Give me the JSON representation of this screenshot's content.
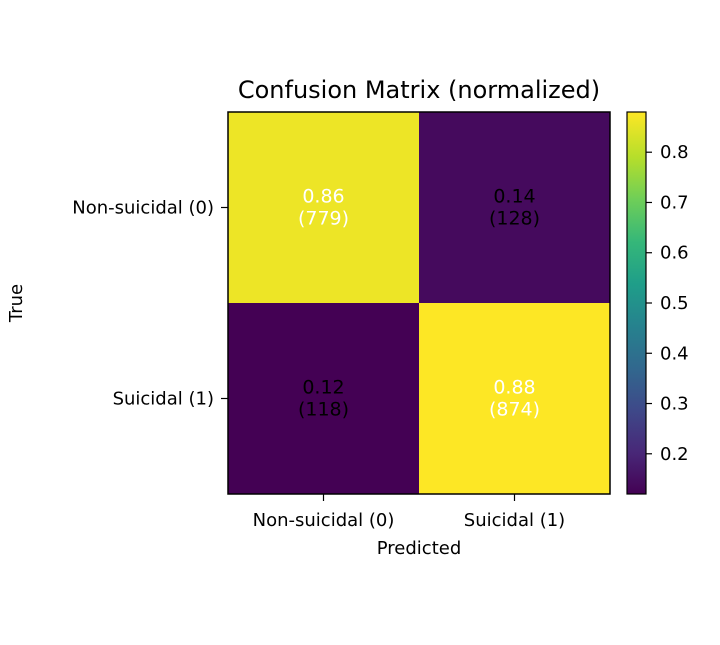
{
  "chart_data": {
    "type": "heatmap",
    "title": "Confusion Matrix (normalized)",
    "xlabel": "Predicted",
    "ylabel": "True",
    "x_categories": [
      "Non-suicidal (0)",
      "Suicidal (1)"
    ],
    "y_categories": [
      "Non-suicidal (0)",
      "Suicidal (1)"
    ],
    "values": [
      [
        0.86,
        0.14
      ],
      [
        0.12,
        0.88
      ]
    ],
    "counts": [
      [
        779,
        128
      ],
      [
        118,
        874
      ]
    ],
    "cell_labels": [
      [
        "0.86\n(779)",
        "0.14\n(128)"
      ],
      [
        "0.12\n(118)",
        "0.88\n(874)"
      ]
    ],
    "colormap": "viridis",
    "colorbar": {
      "range": [
        0.12,
        0.88
      ],
      "ticks": [
        "0.2",
        "0.3",
        "0.4",
        "0.5",
        "0.6",
        "0.7",
        "0.8"
      ]
    },
    "grid": false
  }
}
